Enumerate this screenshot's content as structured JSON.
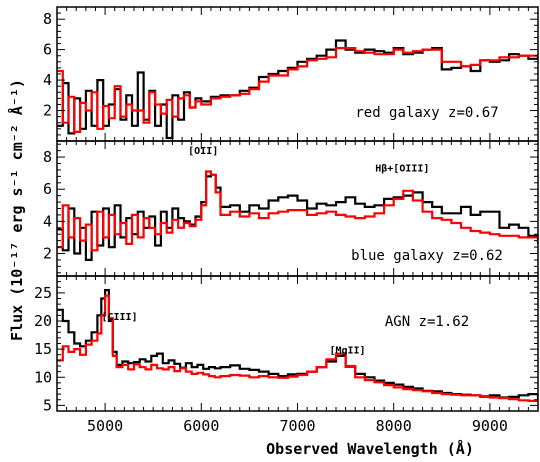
{
  "figure": {
    "xlabel": "Observed Wavelength (Å)",
    "ylabel": "Flux (10⁻¹⁷ erg s⁻¹ cm⁻² Å⁻¹)"
  },
  "chart_data": [
    {
      "type": "line",
      "step": true,
      "annotation": "red galaxy z=0.67",
      "xlim": [
        4500,
        9500
      ],
      "ylim": [
        0,
        8.8
      ],
      "yticks": [
        "2",
        "4",
        "6",
        "8"
      ],
      "xticks": [
        "5000",
        "6000",
        "7000",
        "8000",
        "9000"
      ],
      "x_tick_labels_shown": false,
      "line_labels": [],
      "series": [
        {
          "color": "#000000",
          "x": [
            4500,
            4560,
            4620,
            4680,
            4740,
            4800,
            4860,
            4920,
            4980,
            5040,
            5100,
            5160,
            5220,
            5280,
            5340,
            5400,
            5460,
            5520,
            5580,
            5640,
            5700,
            5760,
            5820,
            5880,
            5940,
            6000,
            6100,
            6200,
            6300,
            6400,
            6500,
            6600,
            6700,
            6800,
            6900,
            7000,
            7100,
            7200,
            7300,
            7400,
            7500,
            7600,
            7700,
            7800,
            7900,
            8000,
            8100,
            8200,
            8300,
            8400,
            8500,
            8600,
            8700,
            8800,
            8900,
            9000,
            9100,
            9200,
            9300,
            9400,
            9500
          ],
          "y": [
            1.0,
            3.8,
            0.5,
            2.8,
            0.8,
            3.3,
            1.0,
            4.0,
            1.0,
            2.4,
            3.4,
            1.4,
            3.0,
            1.0,
            4.5,
            1.4,
            3.3,
            1.0,
            2.4,
            0.2,
            3.0,
            1.4,
            3.2,
            2.2,
            2.8,
            2.6,
            2.9,
            3.0,
            3.0,
            3.3,
            3.5,
            4.2,
            4.4,
            4.6,
            4.8,
            5.2,
            5.4,
            5.6,
            6.0,
            6.6,
            6.0,
            5.8,
            6.0,
            5.9,
            5.8,
            6.1,
            5.7,
            5.8,
            6.0,
            6.1,
            4.7,
            4.8,
            4.9,
            4.6,
            5.3,
            5.2,
            5.3,
            5.7,
            5.6,
            5.4,
            5.6
          ]
        },
        {
          "color": "#ff0000",
          "x": [
            4500,
            4560,
            4620,
            4680,
            4740,
            4800,
            4860,
            4920,
            4980,
            5040,
            5100,
            5160,
            5220,
            5280,
            5340,
            5400,
            5460,
            5520,
            5580,
            5640,
            5700,
            5760,
            5820,
            5880,
            5940,
            6000,
            6100,
            6200,
            6300,
            6400,
            6500,
            6600,
            6700,
            6800,
            6900,
            7000,
            7100,
            7200,
            7300,
            7400,
            7500,
            7600,
            7700,
            7800,
            7900,
            8000,
            8100,
            8200,
            8300,
            8400,
            8500,
            8600,
            8700,
            8800,
            8900,
            9000,
            9100,
            9200,
            9300,
            9400,
            9500
          ],
          "y": [
            4.6,
            1.2,
            2.9,
            0.6,
            2.5,
            2.0,
            3.2,
            0.8,
            2.3,
            1.5,
            3.6,
            1.6,
            2.4,
            2.0,
            2.0,
            1.2,
            3.2,
            2.4,
            1.8,
            2.7,
            1.6,
            2.8,
            3.0,
            2.2,
            2.6,
            2.4,
            2.8,
            2.9,
            3.0,
            3.1,
            3.4,
            3.9,
            4.3,
            4.3,
            4.7,
            4.9,
            5.3,
            5.4,
            5.5,
            6.1,
            6.1,
            5.9,
            5.8,
            5.7,
            5.7,
            6.0,
            5.8,
            5.9,
            6.0,
            6.0,
            5.2,
            5.2,
            4.9,
            5.0,
            5.3,
            5.3,
            5.5,
            5.5,
            5.6,
            5.6,
            5.7
          ]
        }
      ]
    },
    {
      "type": "line",
      "step": true,
      "annotation": "blue galaxy z=0.62",
      "xlim": [
        4500,
        9500
      ],
      "ylim": [
        0.6,
        9
      ],
      "yticks": [
        "2",
        "4",
        "6",
        "8"
      ],
      "xticks": [
        "5000",
        "6000",
        "7000",
        "8000",
        "9000"
      ],
      "x_tick_labels_shown": false,
      "line_labels": [
        {
          "text": "[OII]",
          "x": 6020,
          "y": 8.2
        },
        {
          "text": "Hβ+[OIII]",
          "x": 8090,
          "y": 7.1
        }
      ],
      "series": [
        {
          "color": "#000000",
          "x": [
            4500,
            4560,
            4620,
            4680,
            4740,
            4800,
            4860,
            4920,
            4980,
            5040,
            5100,
            5160,
            5220,
            5280,
            5340,
            5400,
            5460,
            5520,
            5580,
            5640,
            5700,
            5760,
            5820,
            5880,
            5940,
            6000,
            6050,
            6100,
            6150,
            6200,
            6300,
            6400,
            6500,
            6600,
            6700,
            6800,
            6900,
            7000,
            7100,
            7200,
            7300,
            7400,
            7500,
            7600,
            7700,
            7800,
            7900,
            8000,
            8100,
            8200,
            8300,
            8400,
            8500,
            8600,
            8700,
            8800,
            8900,
            9000,
            9100,
            9200,
            9300,
            9400,
            9500
          ],
          "y": [
            3.5,
            2.2,
            4.8,
            2.0,
            3.6,
            1.6,
            4.6,
            2.5,
            4.8,
            2.4,
            5.0,
            3.0,
            4.2,
            3.2,
            4.6,
            3.6,
            4.3,
            2.5,
            4.6,
            3.6,
            4.8,
            4.2,
            4.0,
            3.8,
            4.3,
            5.2,
            6.8,
            6.9,
            6.1,
            4.9,
            5.0,
            4.6,
            5.0,
            4.8,
            5.3,
            5.5,
            5.6,
            5.3,
            4.8,
            5.1,
            5.0,
            5.2,
            5.5,
            5.1,
            4.9,
            5.0,
            5.4,
            5.5,
            5.6,
            5.8,
            5.2,
            4.9,
            4.5,
            4.5,
            4.9,
            4.4,
            4.6,
            4.6,
            3.6,
            3.8,
            3.6,
            3.1,
            2.6
          ]
        },
        {
          "color": "#ff0000",
          "x": [
            4500,
            4560,
            4620,
            4680,
            4740,
            4800,
            4860,
            4920,
            4980,
            5040,
            5100,
            5160,
            5220,
            5280,
            5340,
            5400,
            5460,
            5520,
            5580,
            5640,
            5700,
            5760,
            5820,
            5880,
            5940,
            6000,
            6050,
            6100,
            6150,
            6200,
            6300,
            6400,
            6500,
            6600,
            6700,
            6800,
            6900,
            7000,
            7100,
            7200,
            7300,
            7400,
            7500,
            7600,
            7700,
            7800,
            7900,
            8000,
            8100,
            8200,
            8300,
            8400,
            8500,
            8600,
            8700,
            8800,
            8900,
            9000,
            9100,
            9200,
            9300,
            9400,
            9500
          ],
          "y": [
            2.4,
            5.0,
            3.0,
            4.2,
            2.8,
            3.8,
            2.2,
            4.6,
            3.0,
            4.4,
            3.2,
            3.9,
            2.6,
            4.4,
            3.0,
            4.2,
            3.6,
            3.2,
            3.9,
            3.3,
            4.1,
            3.6,
            3.9,
            3.7,
            4.1,
            5.0,
            7.1,
            6.9,
            5.8,
            4.4,
            4.6,
            4.3,
            4.5,
            4.2,
            4.5,
            4.6,
            4.7,
            4.7,
            4.4,
            4.5,
            4.6,
            4.4,
            4.3,
            4.2,
            4.3,
            4.5,
            5.0,
            5.4,
            5.9,
            5.3,
            4.6,
            4.2,
            4.1,
            3.9,
            3.6,
            3.4,
            3.3,
            3.2,
            3.1,
            3.1,
            3.0,
            3.0,
            3.0
          ]
        }
      ]
    },
    {
      "type": "line",
      "step": true,
      "annotation": "AGN z=1.62",
      "xlim": [
        4500,
        9500
      ],
      "ylim": [
        4,
        28
      ],
      "yticks": [
        "5",
        "10",
        "15",
        "20",
        "25"
      ],
      "xticks": [
        "5000",
        "6000",
        "7000",
        "8000",
        "9000"
      ],
      "x_tick_labels_shown": true,
      "line_labels": [
        {
          "text": "[CIII]",
          "x": 5150,
          "y": 20.2
        },
        {
          "text": "[MgII]",
          "x": 7520,
          "y": 14.2
        }
      ],
      "series": [
        {
          "color": "#000000",
          "x": [
            4500,
            4560,
            4620,
            4680,
            4740,
            4800,
            4860,
            4920,
            4960,
            5000,
            5040,
            5080,
            5120,
            5180,
            5240,
            5300,
            5360,
            5420,
            5480,
            5540,
            5600,
            5660,
            5720,
            5780,
            5840,
            5900,
            5960,
            6020,
            6080,
            6140,
            6200,
            6300,
            6400,
            6500,
            6600,
            6700,
            6800,
            6900,
            7000,
            7100,
            7200,
            7300,
            7400,
            7500,
            7600,
            7700,
            7800,
            7900,
            8000,
            8100,
            8200,
            8300,
            8400,
            8500,
            8600,
            8700,
            8800,
            8900,
            9000,
            9100,
            9200,
            9300,
            9400,
            9500
          ],
          "y": [
            22.0,
            20.0,
            18.0,
            16.0,
            15.5,
            16.5,
            18.0,
            21.0,
            24.0,
            25.5,
            20.0,
            14.5,
            12.2,
            12.8,
            12.5,
            12.7,
            13.2,
            12.8,
            13.8,
            14.2,
            12.5,
            13.0,
            12.4,
            11.7,
            12.5,
            11.8,
            12.2,
            11.5,
            11.8,
            11.6,
            11.8,
            12.1,
            11.5,
            11.3,
            11.0,
            10.6,
            10.2,
            10.5,
            10.6,
            11.0,
            11.8,
            12.8,
            13.8,
            11.9,
            10.6,
            10.0,
            9.4,
            9.0,
            8.7,
            8.3,
            8.0,
            7.6,
            7.5,
            7.2,
            7.0,
            6.9,
            6.8,
            6.6,
            6.8,
            6.4,
            6.5,
            6.8,
            7.0,
            6.0
          ]
        },
        {
          "color": "#ff0000",
          "x": [
            4500,
            4560,
            4620,
            4680,
            4740,
            4800,
            4860,
            4920,
            4960,
            5000,
            5040,
            5080,
            5120,
            5180,
            5240,
            5300,
            5360,
            5420,
            5480,
            5540,
            5600,
            5660,
            5720,
            5780,
            5840,
            5900,
            5960,
            6020,
            6080,
            6140,
            6200,
            6300,
            6400,
            6500,
            6600,
            6700,
            6800,
            6900,
            7000,
            7100,
            7200,
            7300,
            7400,
            7500,
            7600,
            7700,
            7800,
            7900,
            8000,
            8100,
            8200,
            8300,
            8400,
            8500,
            8600,
            8700,
            8800,
            8900,
            9000,
            9100,
            9200,
            9300,
            9400,
            9500
          ],
          "y": [
            13.0,
            15.5,
            14.5,
            15.0,
            14.0,
            15.8,
            16.5,
            17.8,
            21.0,
            24.5,
            20.5,
            13.8,
            11.8,
            12.2,
            11.4,
            12.3,
            11.8,
            11.4,
            12.2,
            11.6,
            11.4,
            11.8,
            11.1,
            11.6,
            11.0,
            10.6,
            10.8,
            10.5,
            10.2,
            10.0,
            10.2,
            10.4,
            10.3,
            10.0,
            10.2,
            10.0,
            9.9,
            10.1,
            10.4,
            11.0,
            11.8,
            13.2,
            14.2,
            12.0,
            10.0,
            9.5,
            9.1,
            8.6,
            8.2,
            7.9,
            7.7,
            7.5,
            7.2,
            7.0,
            6.9,
            6.8,
            6.8,
            6.5,
            6.4,
            6.3,
            6.1,
            5.9,
            5.8,
            5.7
          ]
        }
      ]
    }
  ]
}
